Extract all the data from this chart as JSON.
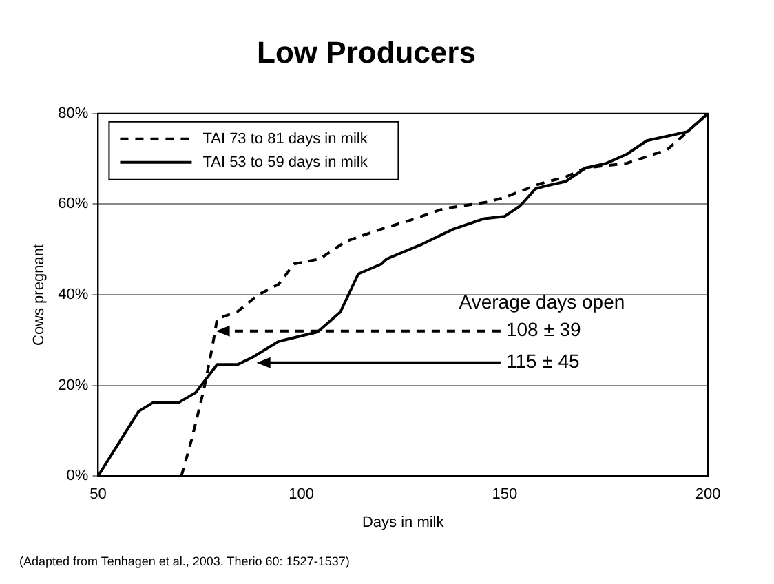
{
  "chart_data": {
    "type": "line",
    "title": "Low Producers",
    "xlabel": "Days in milk",
    "ylabel": "Cows pregnant",
    "series": [
      {
        "name": "TAI 73 to 81 days in milk",
        "color": "#000000",
        "line_style": "dashed",
        "x": [
          70.5,
          73,
          76,
          78,
          79.3,
          84.3,
          89.4,
          94.4,
          98.2,
          104.5,
          111,
          119.7,
          127,
          135,
          146,
          150,
          158.7,
          165,
          170,
          180,
          190,
          200
        ],
        "values": [
          0,
          8,
          19,
          28,
          34.7,
          36.3,
          40,
          42.3,
          46.8,
          47.9,
          51.8,
          54.5,
          56.5,
          59,
          60.5,
          61.5,
          64.5,
          66,
          68,
          69,
          72,
          80
        ]
      },
      {
        "name": "TAI 53 to 59 days in milk",
        "color": "#000000",
        "line_style": "solid",
        "x": [
          50,
          60,
          63.5,
          69.8,
          74,
          79.3,
          84.3,
          88,
          94.4,
          104,
          109.6,
          114,
          119.7,
          121,
          129.8,
          137.4,
          145,
          150,
          153.8,
          157.6,
          160,
          165,
          170,
          175,
          180,
          185,
          190,
          195,
          200
        ],
        "values": [
          0,
          14.3,
          16.2,
          16.2,
          18.4,
          24.6,
          24.6,
          26.2,
          29.7,
          31.8,
          36.2,
          44.6,
          46.8,
          47.9,
          51.2,
          54.5,
          56.8,
          57.3,
          59.6,
          63.4,
          64,
          65,
          68,
          69,
          71,
          74,
          75,
          76,
          80
        ]
      }
    ],
    "xlim": [
      50,
      200
    ],
    "xticks": [
      50,
      100,
      150,
      200
    ],
    "ylim": [
      0,
      80
    ],
    "yticks": [
      {
        "value": 0,
        "label": "0%"
      },
      {
        "value": 20,
        "label": "20%"
      },
      {
        "value": 40,
        "label": "40%"
      },
      {
        "value": 60,
        "label": "60%"
      },
      {
        "value": 80,
        "label": "80%"
      }
    ],
    "grid": "y",
    "legend": "top left",
    "marker": "none",
    "annotations": [
      "Average days open",
      {
        "text": "108 ± 39",
        "x": 79,
        "y": 32
      },
      {
        "text": "115 ± 45",
        "x": 89,
        "y": 25
      },
      "(Adapted from Tenhagen et al., 2003. Therio 60: 1527-1537)"
    ]
  }
}
